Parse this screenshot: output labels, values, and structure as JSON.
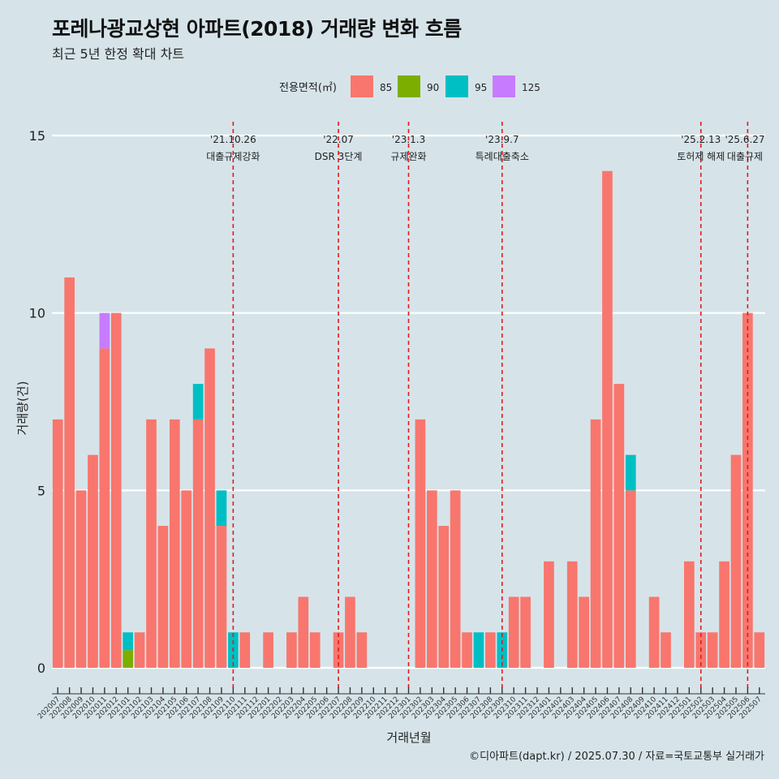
{
  "title": "포레나광교상현 아파트(2018) 거래량 변화 흐름",
  "subtitle": "최근 5년 한정 확대 차트",
  "caption": "©디아파트(dapt.kr) / 2025.07.30 / 자료=국토교통부 실거래가",
  "colors": {
    "background": "#d6e4ea",
    "grid": "#ffffff",
    "event_line": "#e31a1c",
    "area_85": "#f8766d",
    "area_90": "#7cae00",
    "area_95": "#00bfc4",
    "area_125": "#c77cff"
  },
  "chart_data": {
    "type": "bar",
    "stacked": true,
    "xlabel": "거래년월",
    "ylabel": "거래량(건)",
    "ylim": [
      0,
      15
    ],
    "yticks": [
      0,
      5,
      10,
      15
    ],
    "grid": "horizontal",
    "legend": {
      "title": "전용면적(㎡)",
      "position": "top",
      "entries": [
        "85",
        "90",
        "95",
        "125"
      ]
    },
    "categories": [
      "202007",
      "202008",
      "202009",
      "202010",
      "202011",
      "202012",
      "202101",
      "202102",
      "202103",
      "202104",
      "202105",
      "202106",
      "202107",
      "202108",
      "202109",
      "202110",
      "202111",
      "202112",
      "202201",
      "202202",
      "202203",
      "202204",
      "202205",
      "202206",
      "202207",
      "202208",
      "202209",
      "202210",
      "202211",
      "202212",
      "202301",
      "202302",
      "202303",
      "202304",
      "202305",
      "202306",
      "202307",
      "202308",
      "202309",
      "202310",
      "202311",
      "202312",
      "202401",
      "202402",
      "202403",
      "202404",
      "202405",
      "202406",
      "202407",
      "202408",
      "202409",
      "202410",
      "202411",
      "202412",
      "202501",
      "202502",
      "202503",
      "202504",
      "202505",
      "202506",
      "202507"
    ],
    "series": [
      {
        "name": "85",
        "values": [
          7,
          11,
          5,
          6,
          9,
          10,
          0,
          1,
          7,
          4,
          7,
          5,
          7,
          9,
          4,
          0,
          1,
          0,
          1,
          0,
          1,
          2,
          1,
          0,
          1,
          2,
          1,
          0,
          0,
          0,
          0,
          7,
          5,
          4,
          5,
          1,
          0,
          1,
          0,
          2,
          2,
          0,
          3,
          0,
          3,
          2,
          7,
          14,
          8,
          5,
          0,
          2,
          1,
          0,
          3,
          1,
          1,
          3,
          6,
          10,
          1
        ]
      },
      {
        "name": "90",
        "values": [
          0,
          0,
          0,
          0,
          0,
          0,
          0.5,
          0,
          0,
          0,
          0,
          0,
          0,
          0,
          0,
          0,
          0,
          0,
          0,
          0,
          0,
          0,
          0,
          0,
          0,
          0,
          0,
          0,
          0,
          0,
          0,
          0,
          0,
          0,
          0,
          0,
          0,
          0,
          0,
          0,
          0,
          0,
          0,
          0,
          0,
          0,
          0,
          0,
          0,
          0,
          0,
          0,
          0,
          0,
          0,
          0,
          0,
          0,
          0,
          0,
          0
        ]
      },
      {
        "name": "95",
        "values": [
          0,
          0,
          0,
          0,
          0,
          0,
          0.5,
          0,
          0,
          0,
          0,
          0,
          1,
          0,
          1,
          1,
          0,
          0,
          0,
          0,
          0,
          0,
          0,
          0,
          0,
          0,
          0,
          0,
          0,
          0,
          0,
          0,
          0,
          0,
          0,
          0,
          1,
          0,
          1,
          0,
          0,
          0,
          0,
          0,
          0,
          0,
          0,
          0,
          0,
          1,
          0,
          0,
          0,
          0,
          0,
          0,
          0,
          0,
          0,
          0,
          0
        ]
      },
      {
        "name": "125",
        "values": [
          0,
          0,
          0,
          0,
          1,
          0,
          0,
          0,
          0,
          0,
          0,
          0,
          0,
          0,
          0,
          0,
          0,
          0,
          0,
          0,
          0,
          0,
          0,
          0,
          0,
          0,
          0,
          0,
          0,
          0,
          0,
          0,
          0,
          0,
          0,
          0,
          0,
          0,
          0,
          0,
          0,
          0,
          0,
          0,
          0,
          0,
          0,
          0,
          0,
          0,
          0,
          0,
          0,
          0,
          0,
          0,
          0,
          0,
          0,
          0,
          0
        ]
      }
    ],
    "annotations": [
      {
        "x": "202110",
        "date": "'21.10.26",
        "label": "대출규제강화"
      },
      {
        "x": "202207",
        "date": "'22.07",
        "label": "DSR 3단계"
      },
      {
        "x": "202301",
        "date": "'23.1.3",
        "label": "규제완화"
      },
      {
        "x": "202309",
        "date": "'23.9.7",
        "label": "특례대출축소"
      },
      {
        "x": "202502",
        "date": "'25.2.13",
        "label": "토허제 해제"
      },
      {
        "x": "202506",
        "date": "'25.6.27",
        "label": "대출규제"
      }
    ]
  }
}
